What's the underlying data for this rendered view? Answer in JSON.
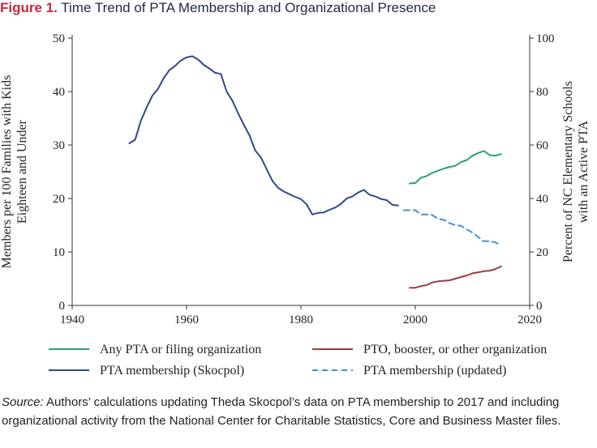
{
  "figure": {
    "label": "Figure 1.",
    "title": "Time Trend of PTA Membership and Organizational Presence"
  },
  "source": {
    "label": "Source:",
    "text": "Authors’ calculations updating Theda Skocpol’s data on PTA membership to 2017 and including organizational activity from the National Center for Charitable Statistics, Core and Business Master files."
  },
  "colors": {
    "any_pta": "#2a9d80",
    "pto": "#9c3e3e",
    "skocpol": "#2e4a8c",
    "updated": "#4a8fd0"
  },
  "chart_data": {
    "type": "line",
    "title": "Time Trend of PTA Membership and Organizational Presence",
    "xlabel": "",
    "xlim": [
      1940,
      2020
    ],
    "xticks": [
      1940,
      1960,
      1980,
      2000,
      2020
    ],
    "ylabel_left": [
      "Members per 100 Families with Kids",
      "Eighteen and Under"
    ],
    "ylim_left": [
      0,
      50
    ],
    "yticks_left": [
      0,
      10,
      20,
      30,
      40,
      50
    ],
    "ylabel_right": [
      "Percent of NC Elementary Schools",
      "with an Active PTA"
    ],
    "ylim_right": [
      0,
      100
    ],
    "yticks_right": [
      0,
      20,
      40,
      60,
      80,
      100
    ],
    "legend_position": "bottom",
    "series": [
      {
        "name": "Any PTA or filing organization",
        "axis": "right",
        "color_key": "any_pta",
        "dashed": false,
        "x": [
          1999,
          2000,
          2001,
          2002,
          2003,
          2004,
          2005,
          2006,
          2007,
          2008,
          2009,
          2010,
          2011,
          2012,
          2013,
          2014,
          2015
        ],
        "y": [
          45.6,
          45.8,
          47.8,
          48.4,
          49.6,
          50.4,
          51.2,
          51.8,
          52.2,
          53.6,
          54.4,
          56.0,
          57.0,
          57.8,
          56.2,
          56.0,
          56.6
        ]
      },
      {
        "name": "PTO, booster, or other organization",
        "axis": "right",
        "color_key": "pto",
        "dashed": false,
        "x": [
          1999,
          2000,
          2001,
          2002,
          2003,
          2004,
          2005,
          2006,
          2007,
          2008,
          2009,
          2010,
          2011,
          2012,
          2013,
          2014,
          2015
        ],
        "y": [
          6.6,
          6.6,
          7.2,
          7.6,
          8.6,
          9.0,
          9.2,
          9.4,
          10.0,
          10.6,
          11.2,
          12.0,
          12.4,
          12.8,
          13.0,
          13.6,
          14.6
        ]
      },
      {
        "name": "PTA membership (Skocpol)",
        "axis": "left",
        "color_key": "skocpol",
        "dashed": false,
        "x": [
          1950,
          1951,
          1952,
          1953,
          1954,
          1955,
          1956,
          1957,
          1958,
          1959,
          1960,
          1961,
          1962,
          1963,
          1964,
          1965,
          1966,
          1967,
          1968,
          1969,
          1970,
          1971,
          1972,
          1973,
          1974,
          1975,
          1976,
          1977,
          1978,
          1979,
          1980,
          1981,
          1982,
          1983,
          1984,
          1985,
          1986,
          1987,
          1988,
          1989,
          1990,
          1991,
          1992,
          1993,
          1994,
          1995,
          1996,
          1997
        ],
        "y": [
          30.3,
          31.0,
          34.5,
          37.0,
          39.2,
          40.5,
          42.5,
          44.0,
          44.8,
          45.8,
          46.4,
          46.6,
          46.0,
          45.0,
          44.3,
          43.5,
          43.3,
          40.0,
          38.3,
          36.0,
          33.8,
          31.8,
          29.0,
          27.7,
          25.5,
          23.3,
          22.0,
          21.3,
          20.8,
          20.3,
          19.9,
          18.9,
          17.0,
          17.3,
          17.4,
          17.9,
          18.3,
          19.0,
          20.0,
          20.4,
          21.1,
          21.6,
          20.7,
          20.4,
          19.9,
          19.7,
          18.8,
          18.7
        ]
      },
      {
        "name": "PTA membership (updated)",
        "axis": "left",
        "color_key": "updated",
        "dashed": true,
        "x": [
          1998,
          1999,
          2000,
          2001,
          2002,
          2003,
          2004,
          2005,
          2006,
          2007,
          2008,
          2009,
          2010,
          2011,
          2012,
          2013,
          2014,
          2015
        ],
        "y": [
          17.8,
          17.8,
          17.8,
          17.0,
          17.0,
          16.9,
          16.2,
          16.0,
          15.4,
          15.0,
          14.9,
          14.2,
          13.6,
          12.8,
          12.0,
          12.0,
          11.8,
          11.2
        ]
      }
    ]
  }
}
